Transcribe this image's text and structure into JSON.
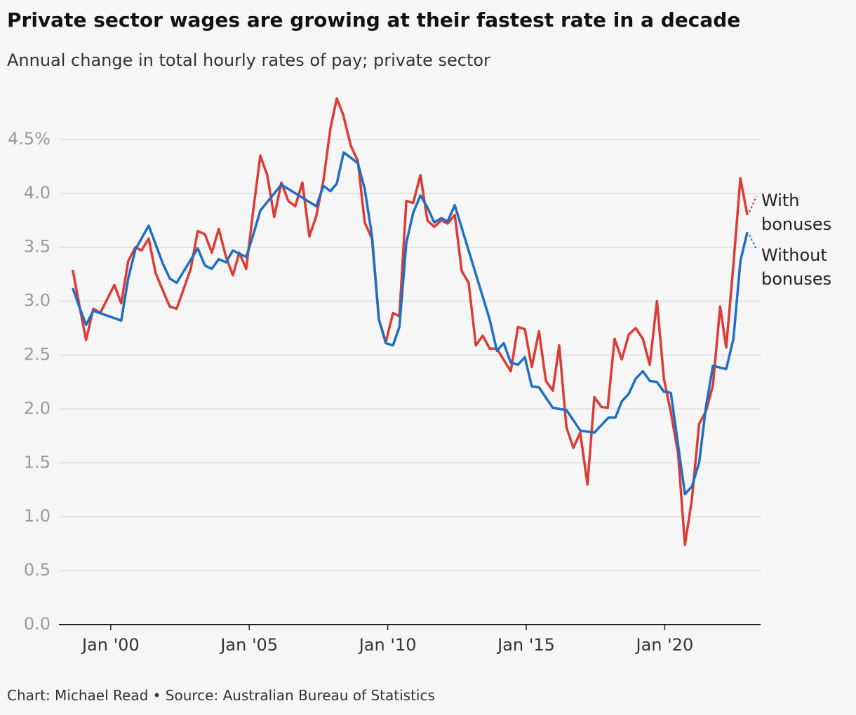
{
  "chart_data": {
    "type": "line",
    "title": "Private sector wages are growing at their fastest rate in a decade",
    "subtitle": "Annual change in total hourly rates of pay; private sector",
    "footer": "Chart: Michael Read • Source: Australian Bureau of Statistics",
    "xlim": [
      1998.13,
      2023.46
    ],
    "xticks": [
      {
        "value": 2000,
        "label": "Jan '00"
      },
      {
        "value": 2005,
        "label": "Jan '05"
      },
      {
        "value": 2010,
        "label": "Jan '10"
      },
      {
        "value": 2015,
        "label": "Jan '15"
      },
      {
        "value": 2020,
        "label": "Jan '20"
      }
    ],
    "ylim": [
      0,
      5
    ],
    "yticks": [
      {
        "value": 0,
        "label": "0.0"
      },
      0.5,
      {
        "value": 1,
        "label": "1.0"
      },
      1.5,
      {
        "value": 2,
        "label": "2.0"
      },
      2.5,
      {
        "value": 3,
        "label": "3.0"
      },
      3.5,
      {
        "value": 4,
        "label": "4.0"
      },
      {
        "value": 4.5,
        "label": "4.5%"
      }
    ],
    "grid": true,
    "legend": "right",
    "series": [
      {
        "name": "With bonuses",
        "color": "#dc3b36",
        "x": [
          1998.63,
          1998.89,
          1999.11,
          1999.37,
          1999.62,
          2000.13,
          2000.38,
          2000.63,
          2000.89,
          2001.11,
          2001.37,
          2001.62,
          2001.88,
          2002.13,
          2002.38,
          2002.89,
          2003.14,
          2003.4,
          2003.65,
          2003.9,
          2004.16,
          2004.41,
          2004.64,
          2004.89,
          2005.14,
          2005.4,
          2005.65,
          2005.9,
          2006.16,
          2006.41,
          2006.66,
          2006.92,
          2007.17,
          2007.42,
          2007.68,
          2007.93,
          2008.16,
          2008.39,
          2008.67,
          2008.92,
          2009.17,
          2009.43,
          2009.68,
          2009.93,
          2010.19,
          2010.42,
          2010.67,
          2010.92,
          2011.18,
          2011.43,
          2011.68,
          2011.94,
          2012.16,
          2012.42,
          2012.67,
          2012.92,
          2013.18,
          2013.43,
          2013.68,
          2013.94,
          2014.44,
          2014.7,
          2014.95,
          2015.2,
          2015.46,
          2015.71,
          2015.96,
          2016.19,
          2016.45,
          2016.7,
          2016.95,
          2017.21,
          2017.46,
          2017.71,
          2017.94,
          2018.19,
          2018.45,
          2018.7,
          2018.95,
          2019.21,
          2019.46,
          2019.72,
          2019.97,
          2020.22,
          2020.48,
          2020.73,
          2020.98,
          2021.24,
          2021.49,
          2021.74,
          2022.0,
          2022.22,
          2022.48,
          2022.73,
          2022.98
        ],
        "values": [
          3.29,
          2.93,
          2.64,
          2.93,
          2.89,
          3.15,
          2.98,
          3.37,
          3.5,
          3.47,
          3.58,
          3.26,
          3.1,
          2.95,
          2.93,
          3.3,
          3.65,
          3.62,
          3.45,
          3.67,
          3.41,
          3.24,
          3.45,
          3.3,
          3.83,
          4.35,
          4.17,
          3.78,
          4.1,
          3.93,
          3.88,
          4.1,
          3.6,
          3.79,
          4.12,
          4.6,
          4.88,
          4.73,
          4.44,
          4.3,
          3.73,
          3.58,
          2.83,
          2.62,
          2.89,
          2.86,
          3.93,
          3.91,
          4.17,
          3.75,
          3.69,
          3.75,
          3.72,
          3.8,
          3.28,
          3.17,
          2.59,
          2.68,
          2.56,
          2.56,
          2.35,
          2.76,
          2.74,
          2.39,
          2.72,
          2.26,
          2.17,
          2.59,
          1.83,
          1.64,
          1.78,
          1.3,
          2.11,
          2.02,
          2.01,
          2.65,
          2.46,
          2.69,
          2.75,
          2.65,
          2.41,
          3.0,
          2.28,
          1.97,
          1.59,
          0.74,
          1.16,
          1.86,
          1.98,
          2.22,
          2.95,
          2.57,
          3.34,
          4.14,
          3.8
        ]
      },
      {
        "name": "Without bonuses",
        "color": "#1f6fc5",
        "x": [
          1998.63,
          1998.89,
          1999.11,
          1999.37,
          2000.38,
          2000.63,
          2000.89,
          2001.37,
          2001.88,
          2002.13,
          2002.38,
          2003.14,
          2003.4,
          2003.65,
          2003.9,
          2004.16,
          2004.41,
          2004.64,
          2004.89,
          2005.14,
          2005.4,
          2006.16,
          2007.42,
          2007.68,
          2007.93,
          2008.16,
          2008.41,
          2008.92,
          2009.17,
          2009.43,
          2009.68,
          2009.93,
          2010.19,
          2010.42,
          2010.67,
          2010.92,
          2011.18,
          2011.43,
          2011.68,
          2011.94,
          2012.16,
          2012.42,
          2013.68,
          2013.94,
          2014.19,
          2014.44,
          2014.7,
          2014.95,
          2015.2,
          2015.46,
          2015.96,
          2016.45,
          2016.95,
          2017.46,
          2017.97,
          2018.22,
          2018.45,
          2018.7,
          2018.95,
          2019.21,
          2019.46,
          2019.72,
          2019.97,
          2020.22,
          2020.73,
          2020.98,
          2021.24,
          2021.49,
          2021.74,
          2022.22,
          2022.48,
          2022.73,
          2022.98
        ],
        "values": [
          3.12,
          2.93,
          2.78,
          2.91,
          2.82,
          3.21,
          3.48,
          3.7,
          3.35,
          3.21,
          3.17,
          3.49,
          3.33,
          3.3,
          3.39,
          3.36,
          3.47,
          3.44,
          3.41,
          3.61,
          3.84,
          4.08,
          3.88,
          4.07,
          4.02,
          4.09,
          4.38,
          4.28,
          4.04,
          3.61,
          2.83,
          2.61,
          2.59,
          2.76,
          3.54,
          3.82,
          3.98,
          3.87,
          3.73,
          3.77,
          3.74,
          3.89,
          2.83,
          2.54,
          2.61,
          2.43,
          2.41,
          2.48,
          2.21,
          2.2,
          2.01,
          1.99,
          1.8,
          1.78,
          1.92,
          1.92,
          2.07,
          2.14,
          2.28,
          2.35,
          2.26,
          2.25,
          2.16,
          2.15,
          1.21,
          1.28,
          1.5,
          2.02,
          2.4,
          2.37,
          2.65,
          3.37,
          3.64
        ]
      }
    ]
  }
}
